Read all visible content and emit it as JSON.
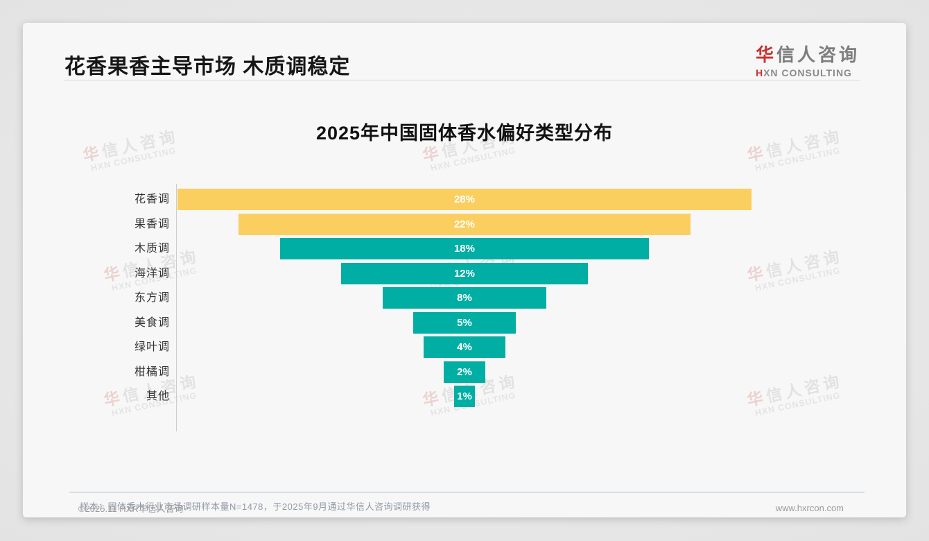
{
  "header": {
    "title": "花香果香主导市场 木质调稳定"
  },
  "logo": {
    "cn_first": "华",
    "cn_rest": "信人咨询",
    "en_first": "H",
    "en_rest": "XN CONSULTING"
  },
  "watermark": {
    "cn_first": "华",
    "cn_rest": "信人咨询",
    "en": "HXN CONSULTING"
  },
  "chart_data": {
    "type": "bar",
    "variant": "centered-funnel-horizontal",
    "title": "2025年中国固体香水偏好类型分布",
    "categories": [
      "花香调",
      "果香调",
      "木质调",
      "海洋调",
      "东方调",
      "美食调",
      "绿叶调",
      "柑橘调",
      "其他"
    ],
    "values": [
      28,
      22,
      18,
      12,
      8,
      5,
      4,
      2,
      1
    ],
    "labels": [
      "28%",
      "22%",
      "18%",
      "12%",
      "8%",
      "5%",
      "4%",
      "2%",
      "1%"
    ],
    "unit": "%",
    "bar_colors": [
      "#fbce60",
      "#fbce60",
      "#01aea4",
      "#01aea4",
      "#01aea4",
      "#01aea4",
      "#01aea4",
      "#01aea4",
      "#01aea4"
    ],
    "value_label_color": "#ffffff",
    "category_axis": "left",
    "value_axis_visible": false,
    "grid": false,
    "legend": false,
    "xlim_percent": [
      0,
      28
    ]
  },
  "note": {
    "text": "样本：固体香水行业市场调研样本量N=1478，于2025年9月通过华信人咨询调研获得"
  },
  "footer": {
    "copyright": "©2025.11 HXR华信人咨询",
    "website": "www.hxrcon.com"
  }
}
